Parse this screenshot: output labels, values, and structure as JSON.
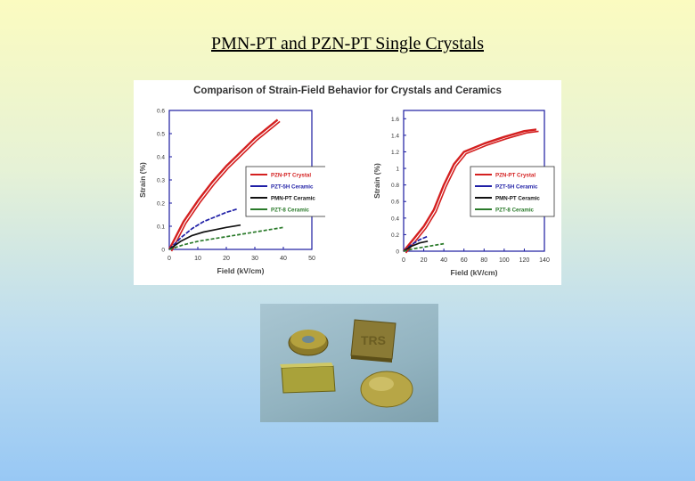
{
  "slide": {
    "title": "PMN-PT and PZN-PT Single Crystals"
  },
  "figure": {
    "title": "Comparison of Strain-Field Behavior for Crystals and Ceramics"
  },
  "chart_data": [
    {
      "type": "line",
      "xlabel": "Field (kV/cm)",
      "ylabel": "Strain (%)",
      "xlim": [
        0,
        50
      ],
      "ylim": [
        0,
        0.6
      ],
      "x_ticks": [
        "0",
        "10",
        "20",
        "30",
        "40",
        "50"
      ],
      "y_ticks": [
        "0",
        "0.1",
        "0.2",
        "0.3",
        "0.4",
        "0.5",
        "0.6"
      ],
      "legend_position": "center-right",
      "series": [
        {
          "name": "PZN-PT Crystal",
          "color": "#d42020",
          "points": [
            [
              0,
              0
            ],
            [
              5,
              0.12
            ],
            [
              10,
              0.21
            ],
            [
              15,
              0.29
            ],
            [
              20,
              0.36
            ],
            [
              25,
              0.42
            ],
            [
              30,
              0.48
            ],
            [
              35,
              0.53
            ],
            [
              38,
              0.56
            ]
          ]
        },
        {
          "name": "PZT-5H Ceramic",
          "color": "#1f1fa6",
          "points": [
            [
              0,
              0
            ],
            [
              4,
              0.05
            ],
            [
              8,
              0.09
            ],
            [
              12,
              0.12
            ],
            [
              16,
              0.14
            ],
            [
              20,
              0.16
            ],
            [
              24,
              0.175
            ]
          ]
        },
        {
          "name": "PMN-PT Ceramic",
          "color": "#111111",
          "points": [
            [
              0,
              0
            ],
            [
              4,
              0.035
            ],
            [
              8,
              0.06
            ],
            [
              12,
              0.075
            ],
            [
              16,
              0.085
            ],
            [
              20,
              0.095
            ],
            [
              25,
              0.105
            ]
          ]
        },
        {
          "name": "PZT-8 Ceramic",
          "color": "#2a7a2a",
          "points": [
            [
              0,
              0
            ],
            [
              5,
              0.02
            ],
            [
              10,
              0.035
            ],
            [
              15,
              0.045
            ],
            [
              20,
              0.055
            ],
            [
              25,
              0.065
            ],
            [
              30,
              0.075
            ],
            [
              35,
              0.085
            ],
            [
              40,
              0.095
            ]
          ]
        }
      ]
    },
    {
      "type": "line",
      "xlabel": "Field (kV/cm)",
      "ylabel": "Strain (%)",
      "xlim": [
        0,
        140
      ],
      "ylim": [
        0,
        1.7
      ],
      "x_ticks": [
        "0",
        "20",
        "40",
        "60",
        "80",
        "100",
        "120",
        "140"
      ],
      "y_ticks": [
        "0",
        "0.2",
        "0.4",
        "0.6",
        "0.8",
        "1",
        "1.2",
        "1.4",
        "1.6"
      ],
      "legend_position": "center-right",
      "series": [
        {
          "name": "PZN-PT Crystal",
          "color": "#d42020",
          "points": [
            [
              0,
              0
            ],
            [
              10,
              0.15
            ],
            [
              20,
              0.3
            ],
            [
              30,
              0.5
            ],
            [
              40,
              0.8
            ],
            [
              50,
              1.05
            ],
            [
              60,
              1.2
            ],
            [
              80,
              1.3
            ],
            [
              100,
              1.38
            ],
            [
              120,
              1.45
            ],
            [
              132,
              1.47
            ]
          ]
        },
        {
          "name": "PZT-5H Ceramic",
          "color": "#1f1fa6",
          "points": [
            [
              0,
              0
            ],
            [
              8,
              0.08
            ],
            [
              16,
              0.14
            ],
            [
              24,
              0.18
            ]
          ]
        },
        {
          "name": "PMN-PT Ceramic",
          "color": "#111111",
          "points": [
            [
              0,
              0
            ],
            [
              8,
              0.06
            ],
            [
              16,
              0.1
            ],
            [
              24,
              0.12
            ]
          ]
        },
        {
          "name": "PZT-8 Ceramic",
          "color": "#2a7a2a",
          "points": [
            [
              0,
              0
            ],
            [
              10,
              0.03
            ],
            [
              20,
              0.05
            ],
            [
              30,
              0.07
            ],
            [
              40,
              0.09
            ]
          ]
        }
      ]
    }
  ],
  "photo": {
    "plate_text": "TRS"
  }
}
